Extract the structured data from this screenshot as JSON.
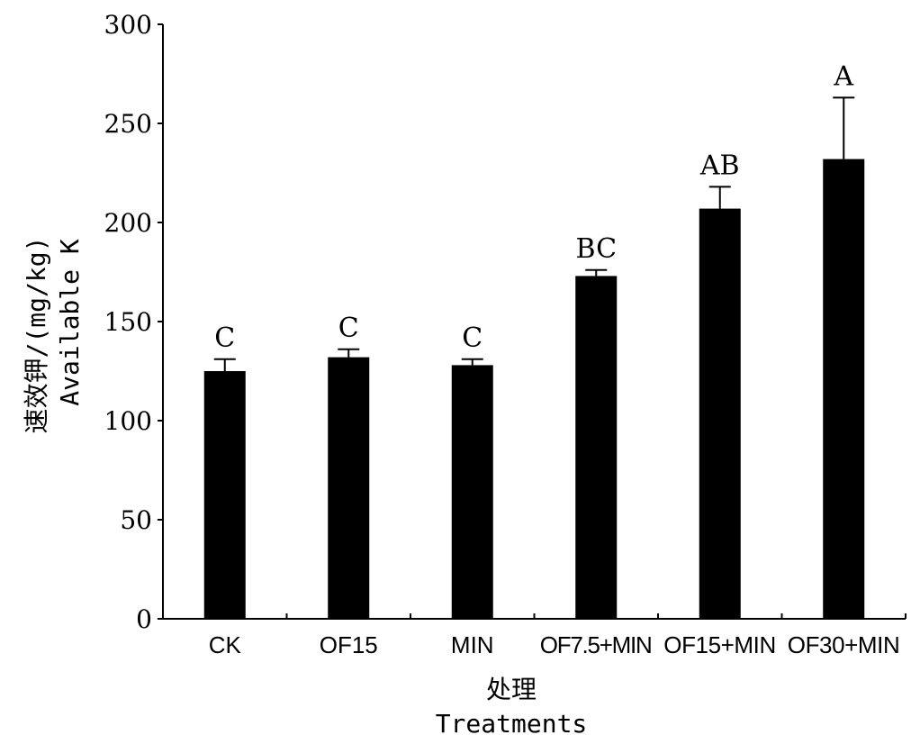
{
  "chart_data": {
    "type": "bar",
    "categories": [
      "CK",
      "OF15",
      "MIN",
      "OF7.5+MIN",
      "OF15+MIN",
      "OF30+MIN"
    ],
    "series": [
      {
        "values": [
          125,
          132,
          128,
          173,
          207,
          232
        ],
        "error": [
          6,
          4,
          3,
          3,
          11,
          31
        ],
        "significance": [
          "C",
          "C",
          "C",
          "BC",
          "AB",
          "A"
        ]
      }
    ],
    "ylim": [
      0,
      300
    ],
    "yticks": [
      0,
      50,
      100,
      150,
      200,
      250,
      300
    ],
    "ylabel_cn": "速效钾/(mg/kg)",
    "ylabel_en": "Available K",
    "xlabel_cn": "处理",
    "xlabel_en": "Treatments",
    "bar_color": "#000000",
    "grid": false,
    "legend": "none"
  }
}
